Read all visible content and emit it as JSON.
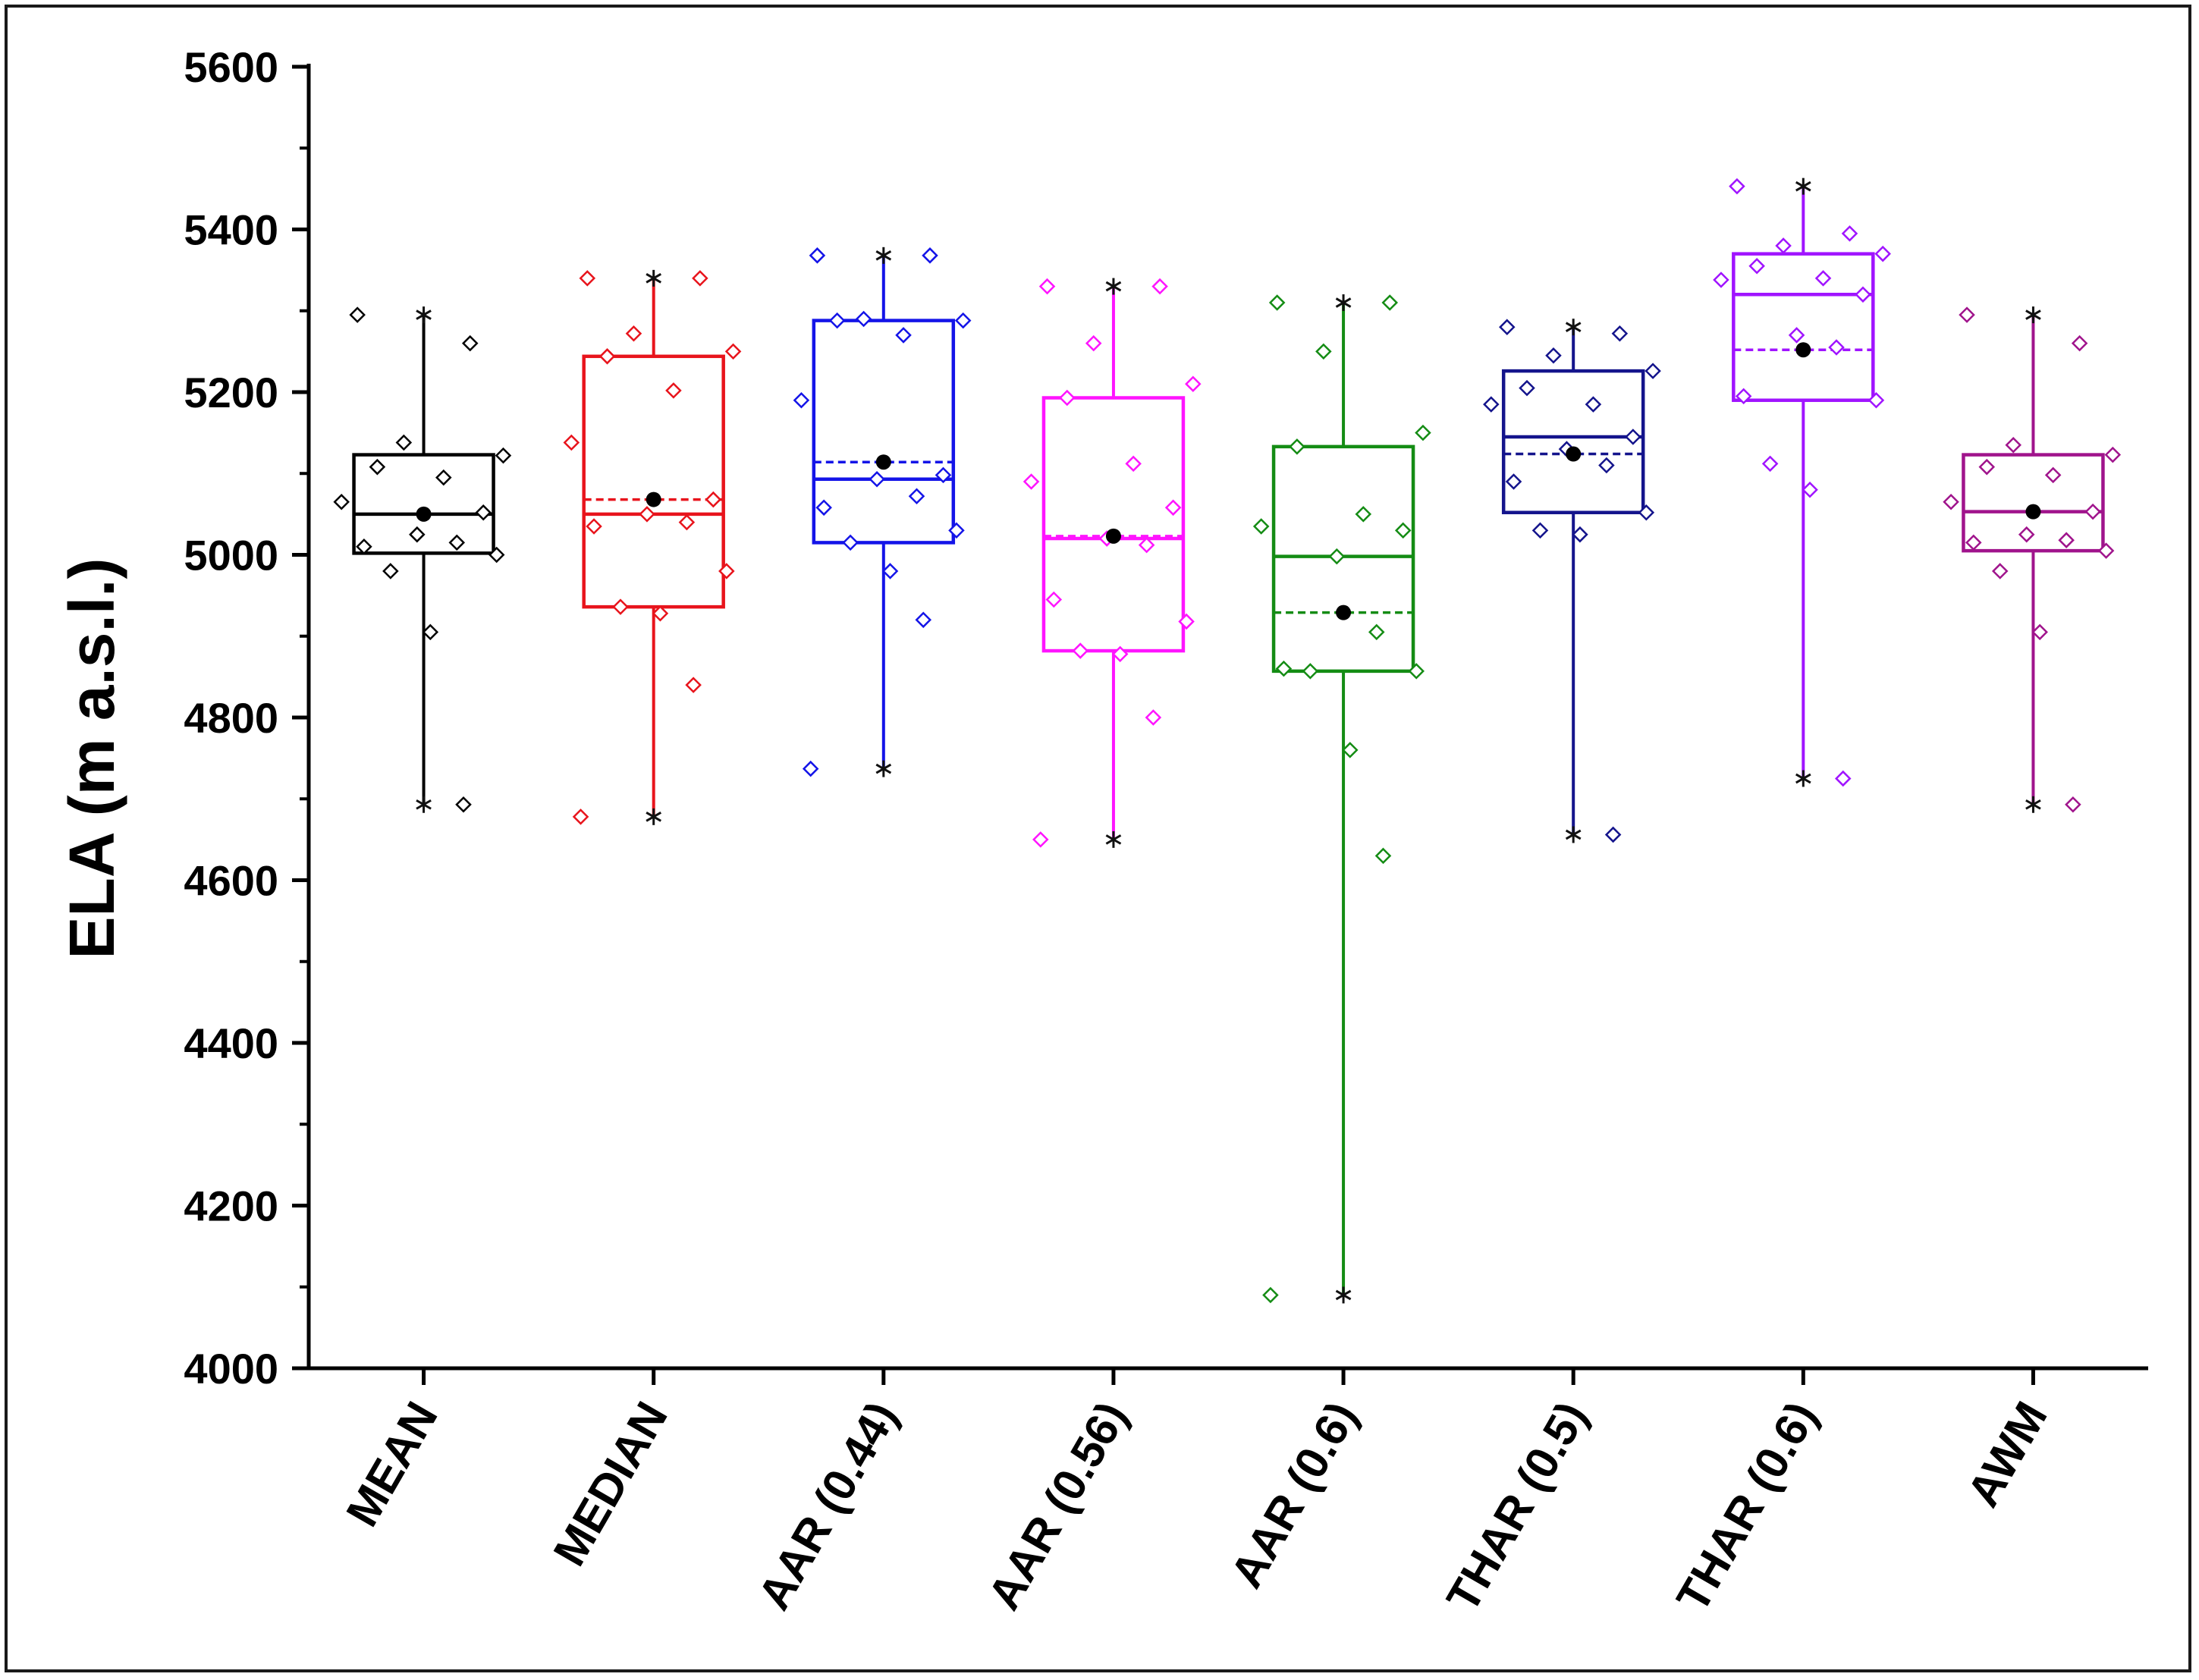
{
  "chart_data": {
    "type": "box",
    "title": "",
    "xlabel": "",
    "ylabel": "ELA (m a.s.l.)",
    "ylim": [
      4000,
      5600
    ],
    "yticks": [
      4000,
      4200,
      4400,
      4600,
      4800,
      5000,
      5200,
      5400,
      5600
    ],
    "yticks_minor": [
      4100,
      4300,
      4500,
      4700,
      4900,
      5100,
      5300,
      5500
    ],
    "grid": false,
    "legend": "none",
    "categories": [
      "MEAN",
      "MEDIAN",
      "AAR (0.44)",
      "AAR (0.56)",
      "AAR (0.6)",
      "THAR (0.5)",
      "THAR (0.6)",
      "AWM"
    ],
    "series": [
      {
        "name": "MEAN",
        "color": "#000000",
        "min": 4693,
        "q1": 5002,
        "median": 5050,
        "q3": 5123,
        "max": 5295,
        "mean": 5050,
        "points": [
          5295,
          5260,
          5138,
          5122,
          5108,
          5095,
          5065,
          5052,
          5025,
          5015,
          5010,
          5000,
          4980,
          4905,
          4693
        ]
      },
      {
        "name": "MEDIAN",
        "color": "#e8141c",
        "min": 4678,
        "q1": 4936,
        "median": 5050,
        "q3": 5244,
        "max": 5340,
        "mean": 5068,
        "points": [
          5340,
          5340,
          5272,
          5250,
          5244,
          5202,
          5138,
          5068,
          5050,
          5040,
          5035,
          4980,
          4936,
          4928,
          4840,
          4678
        ]
      },
      {
        "name": "AAR (0.44)",
        "color": "#1414e8",
        "min": 4737,
        "q1": 5015,
        "median": 5093,
        "q3": 5288,
        "max": 5368,
        "mean": 5114,
        "points": [
          5368,
          5368,
          5290,
          5288,
          5288,
          5270,
          5190,
          5098,
          5093,
          5072,
          5058,
          5030,
          5015,
          4980,
          4920,
          4737
        ]
      },
      {
        "name": "AAR (0.56)",
        "color": "#ff14ff",
        "min": 4650,
        "q1": 4882,
        "median": 5020,
        "q3": 5193,
        "max": 5330,
        "mean": 5023,
        "points": [
          5330,
          5330,
          5260,
          5210,
          5193,
          5112,
          5090,
          5058,
          5020,
          5012,
          4945,
          4918,
          4882,
          4878,
          4800,
          4650
        ]
      },
      {
        "name": "AAR (0.6)",
        "color": "#148c14",
        "min": 4090,
        "q1": 4857,
        "median": 4998,
        "q3": 5133,
        "max": 5310,
        "mean": 4929,
        "points": [
          5310,
          5310,
          5250,
          5150,
          5133,
          5050,
          5035,
          5030,
          4998,
          4905,
          4860,
          4857,
          4857,
          4760,
          4630,
          4090
        ]
      },
      {
        "name": "THAR (0.5)",
        "color": "#14148c",
        "min": 4656,
        "q1": 5052,
        "median": 5145,
        "q3": 5226,
        "max": 5280,
        "mean": 5124,
        "points": [
          5280,
          5272,
          5245,
          5226,
          5205,
          5185,
          5185,
          5145,
          5130,
          5110,
          5090,
          5052,
          5030,
          5025,
          4656
        ]
      },
      {
        "name": "THAR (0.6)",
        "color": "#a014ff",
        "min": 4725,
        "q1": 5190,
        "median": 5320,
        "q3": 5370,
        "max": 5453,
        "mean": 5252,
        "points": [
          5453,
          5395,
          5380,
          5370,
          5355,
          5340,
          5338,
          5320,
          5270,
          5255,
          5195,
          5190,
          5112,
          5080,
          4725
        ]
      },
      {
        "name": "AWM",
        "color": "#a0148c",
        "min": 4693,
        "q1": 5005,
        "median": 5053,
        "q3": 5123,
        "max": 5295,
        "mean": 5053,
        "points": [
          5295,
          5260,
          5135,
          5123,
          5108,
          5098,
          5065,
          5053,
          5025,
          5018,
          5015,
          5005,
          4980,
          4905,
          4693
        ]
      }
    ]
  }
}
